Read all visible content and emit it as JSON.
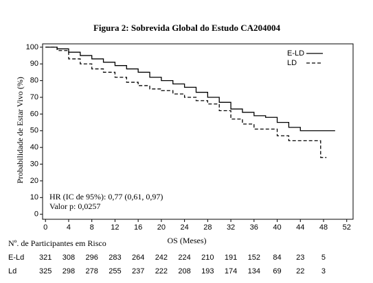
{
  "chart_data": {
    "type": "step",
    "title": "Figura 2: Sobrevida Global do Estudo CA204004",
    "x_label": "OS (Meses)",
    "y_label": "Probabilidade de Estar Vivo (%)",
    "xlim": [
      -0.5,
      53.1
    ],
    "ylim": [
      -3,
      102
    ],
    "xticks": [
      0,
      4,
      8,
      12,
      16,
      20,
      24,
      28,
      32,
      36,
      40,
      44,
      48,
      52
    ],
    "yticks": [
      0,
      10,
      20,
      30,
      40,
      50,
      60,
      70,
      80,
      90,
      100
    ],
    "grid": false,
    "legend": "top-right",
    "annotations": [
      "HR (IC de 95%): 0,77 (0,61, 0,97)",
      "Valor p: 0,0257"
    ],
    "series": [
      {
        "name": "E-LD",
        "color": "#000000",
        "dash": "none",
        "x": [
          0,
          2,
          4,
          6,
          8,
          10,
          12,
          14,
          16,
          18,
          20,
          22,
          24,
          26,
          28,
          30,
          32,
          34,
          36,
          38,
          40,
          42,
          44,
          46,
          48,
          50
        ],
        "values": [
          100,
          99,
          97,
          95,
          93,
          91,
          89,
          87,
          85,
          82,
          80,
          78,
          76,
          73,
          70,
          67,
          63,
          61,
          59,
          58,
          55,
          52,
          50,
          50,
          50,
          50
        ]
      },
      {
        "name": "LD",
        "color": "#000000",
        "dash": "5,3",
        "x": [
          0,
          2,
          4,
          6,
          8,
          10,
          12,
          14,
          16,
          18,
          20,
          22,
          24,
          26,
          28,
          30,
          32,
          34,
          36,
          38,
          40,
          42,
          44,
          46,
          47.5,
          48.5
        ],
        "values": [
          100,
          98,
          93,
          90,
          87,
          85,
          82,
          79,
          77,
          75,
          74,
          72,
          70,
          68,
          66,
          62,
          57,
          54,
          51,
          51,
          47,
          44,
          44,
          44,
          34,
          34
        ]
      }
    ]
  },
  "risk_table": {
    "title": "Nº. de Participantes em Risco",
    "rows": [
      {
        "label": "E-Ld",
        "values": [
          "321",
          "308",
          "296",
          "283",
          "264",
          "242",
          "224",
          "210",
          "191",
          "152",
          "84",
          "23",
          "5"
        ]
      },
      {
        "label": "Ld",
        "values": [
          "325",
          "298",
          "278",
          "255",
          "237",
          "222",
          "208",
          "193",
          "174",
          "134",
          "69",
          "22",
          "3"
        ]
      }
    ]
  }
}
